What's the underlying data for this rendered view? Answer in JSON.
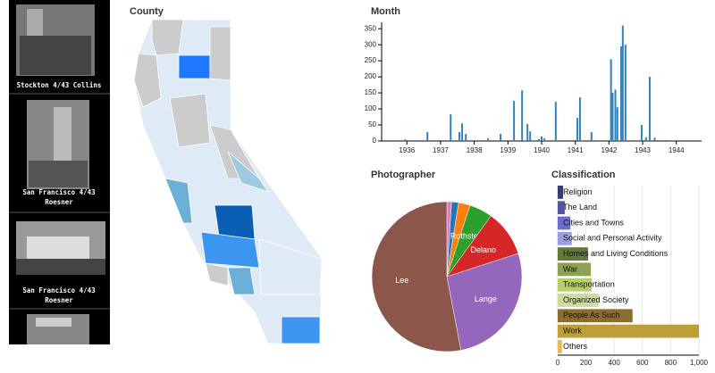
{
  "sidebar": {
    "photos": [
      {
        "caption": [
          "Stockton 4/43 Collins"
        ]
      },
      {
        "caption": [
          "San Francisco 4/43",
          "Roesner"
        ]
      },
      {
        "caption": [
          "San Francisco 4/43",
          "Roesner"
        ]
      }
    ]
  },
  "map": {
    "title": "County"
  },
  "chart_data": [
    {
      "type": "bar",
      "title": "Month",
      "color": "#3182bd",
      "x": [
        1935.95,
        1936.61,
        1937.3,
        1937.56,
        1937.64,
        1937.75,
        1938.41,
        1938.78,
        1939.18,
        1939.42,
        1939.58,
        1939.66,
        1939.92,
        1940.0,
        1940.08,
        1940.42,
        1941.06,
        1941.14,
        1941.48,
        1942.06,
        1942.11,
        1942.19,
        1942.25,
        1942.36,
        1942.41,
        1942.49,
        1942.97,
        1943.1,
        1943.21,
        1943.36,
        1943.68
      ],
      "values": [
        5,
        28,
        83,
        28,
        55,
        22,
        8,
        22,
        125,
        158,
        53,
        30,
        6,
        14,
        8,
        122,
        72,
        136,
        28,
        255,
        150,
        160,
        105,
        295,
        360,
        300,
        50,
        12,
        200,
        10,
        3
      ],
      "xlim": [
        1935.25,
        1944.75
      ],
      "xticks": [
        1936,
        1937,
        1938,
        1939,
        1940,
        1941,
        1942,
        1943,
        1944
      ],
      "ylim": [
        0,
        370
      ],
      "yticks": [
        0,
        50,
        100,
        150,
        200,
        250,
        300,
        350
      ]
    },
    {
      "type": "pie",
      "title": "Photographer",
      "categories": [
        null,
        null,
        null,
        "Rothstein",
        "Delano",
        "Lange",
        "Lee"
      ],
      "values": [
        1,
        1.5,
        2.5,
        5,
        10,
        27,
        53
      ],
      "colors": [
        "#e377c2",
        "#1f77b4",
        "#ff7f0e",
        "#2ca02c",
        "#d62728",
        "#9467bd",
        "#8c564b"
      ]
    },
    {
      "type": "hbar",
      "title": "Classification",
      "categories": [
        "Religion",
        "The Land",
        "Cities and Towns",
        "Social and Personal Activity",
        "Homes and Living Conditions",
        "War",
        "Transportation",
        "Organized Society",
        "People As Such",
        "Work",
        "Others"
      ],
      "values": [
        38,
        50,
        90,
        100,
        215,
        235,
        240,
        290,
        530,
        1000,
        30
      ],
      "colors": [
        "#393b79",
        "#5254a3",
        "#6b6ecf",
        "#9c9ede",
        "#637939",
        "#8ca252",
        "#b5cf6b",
        "#cedb9c",
        "#8c6d31",
        "#bd9e39",
        "#e7ba52"
      ],
      "xlim": [
        0,
        1000
      ],
      "xticks": [
        0,
        200,
        400,
        600,
        800,
        {
          "value": 1000,
          "label": "1,000"
        }
      ],
      "grid": true
    }
  ]
}
